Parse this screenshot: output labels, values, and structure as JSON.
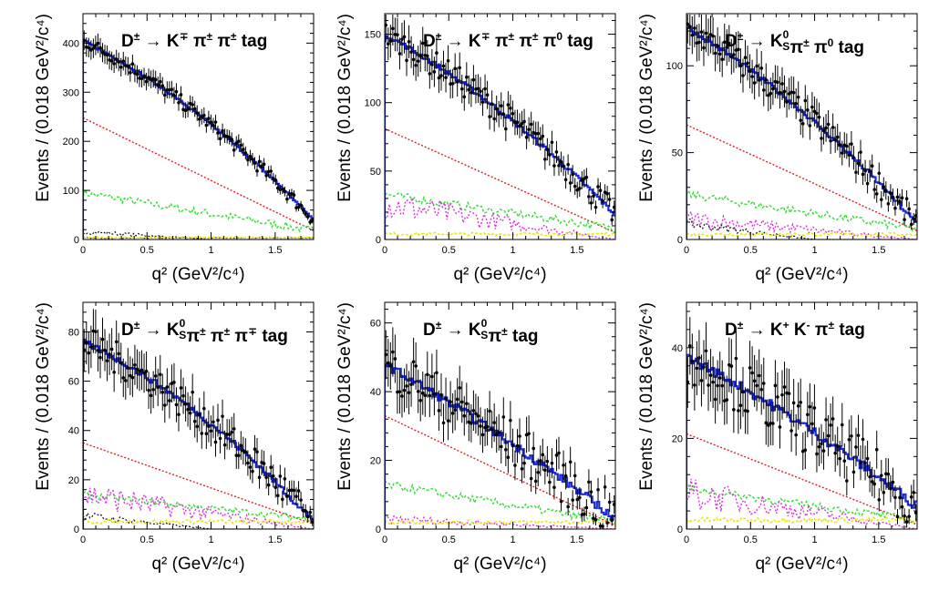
{
  "figure": {
    "y_label": "Events / (0.018 GeV²/c⁴)",
    "x_label": "q² (GeV²/c⁴)"
  },
  "colors": {
    "data": "#000000",
    "fit": "#1a2bd6",
    "signal_bkg_red": "#e02020",
    "bkg_green": "#33dd33",
    "bkg_magenta": "#dd33dd",
    "bkg_yellow": "#e8e800",
    "bkg_black": "#111111",
    "bkg_purple": "#6a2aa0"
  },
  "chart_data": [
    {
      "type": "line",
      "title": "D± → K∓ π± π± tag",
      "title_parts": [
        "D",
        "±",
        " → K",
        "∓",
        " π",
        "±",
        " π",
        "±",
        "  tag"
      ],
      "xlim": [
        0,
        1.8
      ],
      "ylim": [
        0,
        460
      ],
      "xticks": [
        0,
        0.5,
        1,
        1.5
      ],
      "xtick_labels": [
        "0",
        "0.5",
        "1",
        "1.5"
      ],
      "yticks": [
        0,
        100,
        200,
        300,
        400
      ],
      "ytick_labels": [
        "0",
        "100",
        "200",
        "300",
        "400"
      ],
      "fit_start": 405,
      "fit_end": 40,
      "fit_curv": 0.35,
      "noise": 14,
      "red_start": 248,
      "red_end": 18,
      "green_start": 95,
      "green_end": 18,
      "magenta": 0,
      "black_bkg": 18,
      "yellow": 4,
      "purple": 3
    },
    {
      "type": "line",
      "title": "D± → K∓ π± π± π⁰ tag",
      "title_parts": [
        "D",
        "±",
        " → K",
        "∓",
        " π",
        "±",
        " π",
        "±",
        " π",
        "0",
        "  tag"
      ],
      "xlim": [
        0,
        1.8
      ],
      "ylim": [
        0,
        165
      ],
      "xticks": [
        0,
        0.5,
        1,
        1.5
      ],
      "xtick_labels": [
        "0",
        "0.5",
        "1",
        "1.5"
      ],
      "yticks": [
        0,
        50,
        100,
        150
      ],
      "ytick_labels": [
        "0",
        "50",
        "100",
        "150"
      ],
      "fit_start": 150,
      "fit_end": 18,
      "fit_curv": 0.3,
      "noise": 10,
      "red_start": 81,
      "red_end": 5,
      "green_start": 33,
      "green_end": 8,
      "magenta": 26,
      "black_bkg": 0,
      "yellow": 4,
      "purple": 0
    },
    {
      "type": "line",
      "title": "D± → K⁰S π± π⁰ tag",
      "title_parts": [
        "D",
        "±",
        " → K",
        "0S",
        " π",
        "±",
        " π",
        "0",
        "  tag"
      ],
      "xlim": [
        0,
        1.8
      ],
      "ylim": [
        0,
        130
      ],
      "xticks": [
        0,
        0.5,
        1,
        1.5
      ],
      "xtick_labels": [
        "0",
        "0.5",
        "1",
        "1.5"
      ],
      "yticks": [
        0,
        50,
        100
      ],
      "ytick_labels": [
        "0",
        "50",
        "100"
      ],
      "fit_start": 122,
      "fit_end": 9,
      "fit_curv": 0.3,
      "noise": 8,
      "red_start": 66,
      "red_end": 5,
      "green_start": 26,
      "green_end": 6,
      "magenta": 12,
      "black_bkg": 10,
      "yellow": 3,
      "purple": 0
    },
    {
      "type": "line",
      "title": "D± → K⁰S π± π± π∓ tag",
      "title_parts": [
        "D",
        "±",
        " → K",
        "0S",
        " π",
        "±",
        " π",
        "±",
        " π",
        "∓",
        "  tag"
      ],
      "xlim": [
        0,
        1.8
      ],
      "ylim": [
        0,
        92
      ],
      "xticks": [
        0,
        0.5,
        1,
        1.5
      ],
      "xtick_labels": [
        "0",
        "0.5",
        "1",
        "1.5"
      ],
      "yticks": [
        0,
        20,
        40,
        60,
        80
      ],
      "ytick_labels": [
        "0",
        "20",
        "40",
        "60",
        "80"
      ],
      "fit_start": 76,
      "fit_end": 3,
      "fit_curv": 0.4,
      "noise": 7,
      "red_start": 35,
      "red_end": 2,
      "green_start": 14,
      "green_end": 4,
      "magenta": 14,
      "black_bkg": 6,
      "yellow": 3,
      "purple": 0
    },
    {
      "type": "line",
      "title": "D± → K⁰S π± tag",
      "title_parts": [
        "D",
        "±",
        " → K",
        "0S",
        " π",
        "±",
        "  tag"
      ],
      "xlim": [
        0,
        1.8
      ],
      "ylim": [
        0,
        66
      ],
      "xticks": [
        0,
        0.5,
        1,
        1.5
      ],
      "xtick_labels": [
        "0",
        "0.5",
        "1",
        "1.5"
      ],
      "yticks": [
        0,
        20,
        40,
        60
      ],
      "ytick_labels": [
        "0",
        "20",
        "40",
        "60"
      ],
      "fit_start": 48,
      "fit_end": 3,
      "fit_curv": 0.15,
      "noise": 7,
      "red_start": 33,
      "red_end": 1,
      "green_start": 13,
      "green_end": 2,
      "magenta": 3,
      "black_bkg": 0,
      "yellow": 2,
      "purple": 0
    },
    {
      "type": "line",
      "title": "D± → K⁺ K⁻ π± tag",
      "title_parts": [
        "D",
        "±",
        " → K",
        "+",
        " K",
        "-",
        " π",
        "±",
        "  tag"
      ],
      "xlim": [
        0,
        1.8
      ],
      "ylim": [
        0,
        50
      ],
      "xticks": [
        0,
        0.5,
        1,
        1.5
      ],
      "xtick_labels": [
        "0",
        "0.5",
        "1",
        "1.5"
      ],
      "yticks": [
        0,
        20,
        40
      ],
      "ytick_labels": [
        "0",
        "20",
        "40"
      ],
      "fit_start": 38,
      "fit_end": 5,
      "fit_curv": 0.2,
      "noise": 6,
      "red_start": 21,
      "red_end": 1,
      "green_start": 9,
      "green_end": 2,
      "magenta": 8,
      "black_bkg": 0,
      "yellow": 2,
      "purple": 0
    }
  ]
}
